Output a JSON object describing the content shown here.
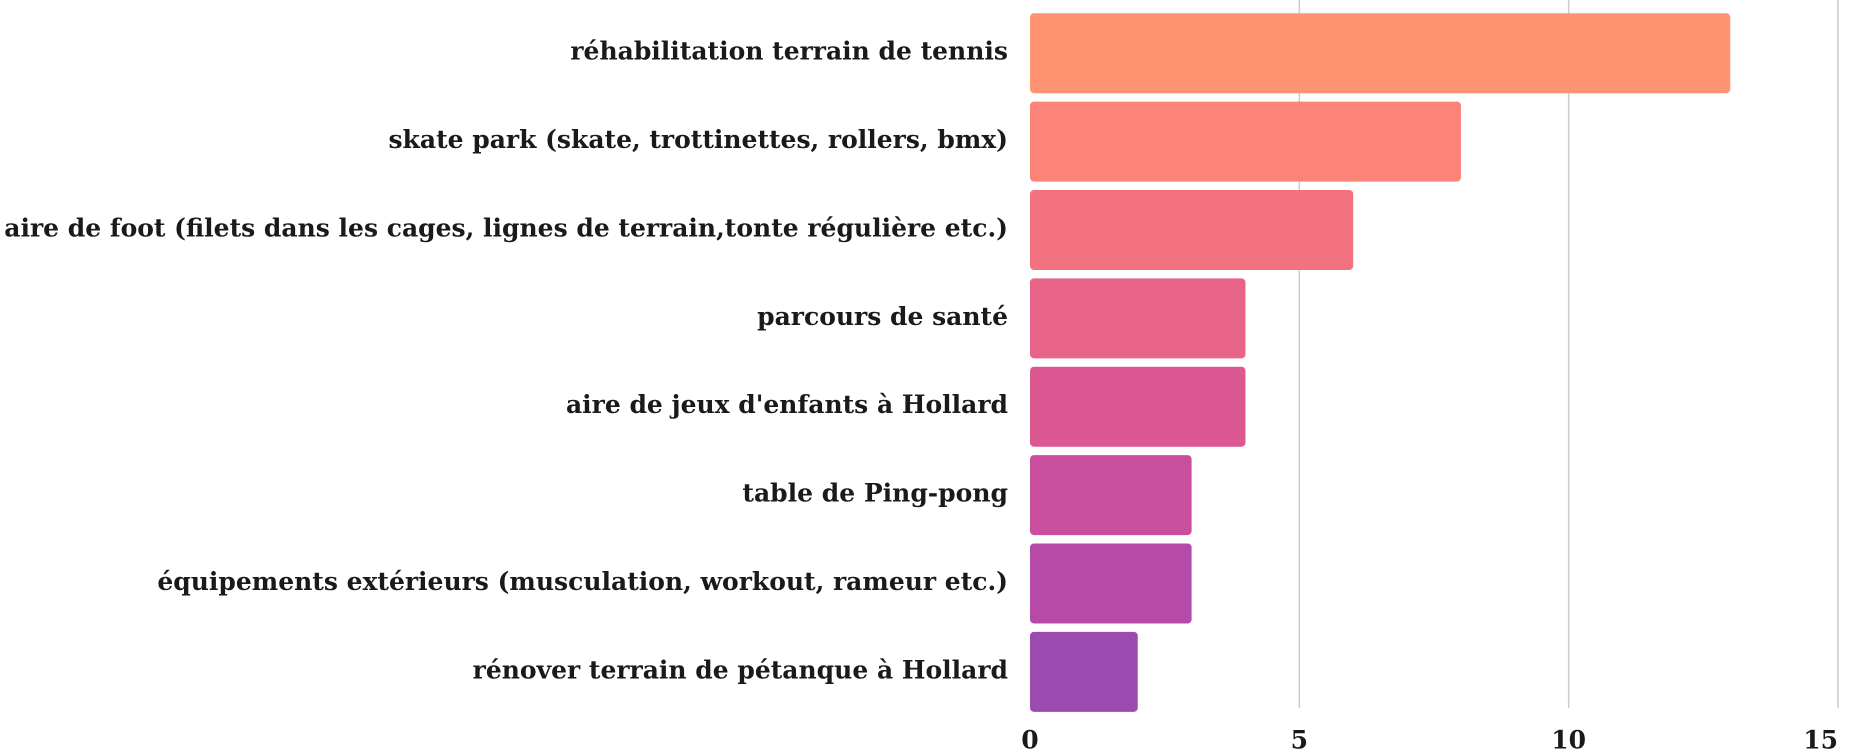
{
  "chart_data": {
    "type": "barh",
    "categories": [
      "réhabilitation terrain de tennis",
      "skate park (skate, trottinettes, rollers, bmx)",
      "aire de foot (filets dans les cages, lignes de terrain,tonte régulière etc.)",
      "parcours de santé",
      "aire de jeux d'enfants à Hollard",
      "table de Ping-pong",
      "équipements extérieurs (musculation, workout, rameur etc.)",
      "rénover terrain de pétanque à Hollard"
    ],
    "values": [
      13,
      8,
      6,
      4,
      4,
      3,
      3,
      2
    ],
    "colors": [
      "#ff9473",
      "#fc8378",
      "#f3727f",
      "#e86388",
      "#db5892",
      "#c94f9e",
      "#b54aa8",
      "#9b4ab0"
    ],
    "xlim": [
      0,
      15
    ],
    "xticks": [
      0,
      5,
      10,
      15
    ],
    "grid": true
  }
}
